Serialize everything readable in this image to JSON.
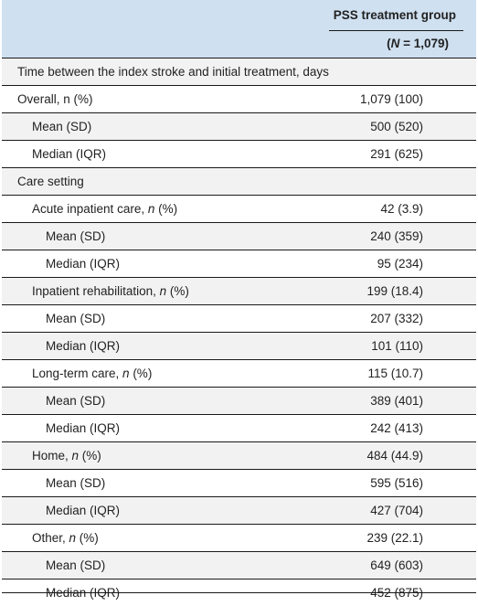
{
  "header": {
    "group": "PSS treatment group",
    "n_symbol": "N",
    "n_value": " = 1,079)"
  },
  "rows": [
    {
      "label": "Time between the index stroke and initial treatment, days",
      "value": "",
      "indent": 0
    },
    {
      "label": "Overall, n (%)",
      "value": "1,079 (100)",
      "indent": 0
    },
    {
      "label": "Mean (SD)",
      "value": "500 (520)",
      "indent": 1
    },
    {
      "label": "Median (IQR)",
      "value": "291 (625)",
      "indent": 1
    },
    {
      "label": "Care setting",
      "value": "",
      "indent": 0
    },
    {
      "label": "Acute inpatient care, ",
      "label_italic": "n",
      "label_tail": " (%)",
      "value": "42 (3.9)",
      "indent": 1
    },
    {
      "label": "Mean (SD)",
      "value": "240 (359)",
      "indent": 2
    },
    {
      "label": "Median (IQR)",
      "value": "95 (234)",
      "indent": 2
    },
    {
      "label": "Inpatient rehabilitation, ",
      "label_italic": "n",
      "label_tail": " (%)",
      "value": "199 (18.4)",
      "indent": 1
    },
    {
      "label": "Mean (SD)",
      "value": "207 (332)",
      "indent": 2
    },
    {
      "label": "Median (IQR)",
      "value": "101 (110)",
      "indent": 2
    },
    {
      "label": "Long-term care, ",
      "label_italic": "n",
      "label_tail": " (%)",
      "value": "115 (10.7)",
      "indent": 1
    },
    {
      "label": "Mean (SD)",
      "value": "389 (401)",
      "indent": 2
    },
    {
      "label": "Median (IQR)",
      "value": "242 (413)",
      "indent": 2
    },
    {
      "label": "Home, ",
      "label_italic": "n",
      "label_tail": " (%)",
      "value": "484 (44.9)",
      "indent": 1
    },
    {
      "label": "Mean (SD)",
      "value": "595 (516)",
      "indent": 2
    },
    {
      "label": "Median (IQR)",
      "value": "427 (704)",
      "indent": 2
    },
    {
      "label": "Other, ",
      "label_italic": "n",
      "label_tail": " (%)",
      "value": "239 (22.1)",
      "indent": 1
    },
    {
      "label": "Mean (SD)",
      "value": "649 (603)",
      "indent": 2
    },
    {
      "label": "Median (IQR)",
      "value": "452 (875)",
      "indent": 2
    }
  ]
}
